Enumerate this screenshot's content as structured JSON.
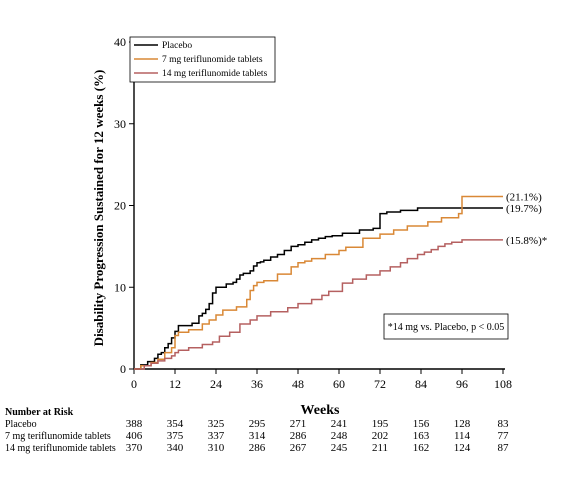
{
  "chart_data": {
    "type": "line",
    "step": true,
    "xlabel": "Weeks",
    "ylabel": "Disability Progression Sustained for 12 weeks (%)",
    "xlim": [
      0,
      108
    ],
    "ylim": [
      0,
      40
    ],
    "xticks": [
      0,
      12,
      24,
      36,
      48,
      60,
      72,
      84,
      96,
      108
    ],
    "yticks": [
      0,
      10,
      20,
      30,
      40
    ],
    "grid": false,
    "legend_position": "top-left",
    "series": [
      {
        "name": "Placebo",
        "color": "#000000",
        "end_label": "(19.7%)",
        "x": [
          0,
          2,
          4,
          6,
          7,
          8,
          9,
          10,
          11,
          12,
          13,
          17,
          19,
          20,
          21,
          22,
          23,
          24,
          27,
          29,
          30,
          31,
          32,
          34,
          35,
          36,
          37,
          38,
          40,
          42,
          44,
          46,
          48,
          50,
          52,
          54,
          56,
          58,
          61,
          66,
          70,
          72,
          74,
          78,
          83,
          96,
          108
        ],
        "y": [
          0,
          0.5,
          0.9,
          1.3,
          1.8,
          2.0,
          2.6,
          3.1,
          3.8,
          4.6,
          5.3,
          5.6,
          6.5,
          6.8,
          7.3,
          8.0,
          9.3,
          10.0,
          10.4,
          10.6,
          11.0,
          11.5,
          11.7,
          12.0,
          12.6,
          13.0,
          13.1,
          13.3,
          13.7,
          14.0,
          14.5,
          15.0,
          15.2,
          15.5,
          15.8,
          16.0,
          16.2,
          16.3,
          16.6,
          17.0,
          17.2,
          19.0,
          19.2,
          19.4,
          19.7,
          19.7,
          19.7
        ]
      },
      {
        "name": "7 mg teriflunomide tablets",
        "color": "#d98836",
        "end_label": "(21.1%)",
        "x": [
          0,
          2,
          5,
          7,
          9,
          11,
          12,
          13,
          16,
          20,
          22,
          24,
          26,
          30,
          33,
          34,
          35,
          36,
          38,
          42,
          46,
          48,
          50,
          52,
          56,
          60,
          62,
          67,
          72,
          76,
          80,
          86,
          90,
          95,
          96,
          108
        ],
        "y": [
          0,
          0.4,
          0.8,
          1.2,
          2.0,
          2.6,
          4.1,
          4.5,
          4.8,
          5.5,
          6.0,
          6.6,
          7.2,
          7.6,
          8.5,
          9.6,
          10.2,
          10.6,
          10.8,
          11.6,
          12.5,
          13.0,
          13.2,
          13.5,
          14.0,
          14.5,
          14.9,
          16.0,
          16.5,
          17.0,
          17.5,
          18.0,
          18.5,
          19.0,
          21.1,
          21.1
        ]
      },
      {
        "name": "14 mg teriflunomide tablets",
        "color": "#b56060",
        "end_label": "(15.8%)*",
        "x": [
          0,
          3,
          5,
          7,
          9,
          11,
          12,
          13,
          16,
          20,
          23,
          25,
          28,
          31,
          34,
          36,
          40,
          45,
          48,
          52,
          55,
          57,
          61,
          64,
          68,
          72,
          75,
          78,
          80,
          83,
          85,
          87,
          89,
          91,
          93,
          96,
          108
        ],
        "y": [
          0,
          0.4,
          0.7,
          1.0,
          1.3,
          1.6,
          2.0,
          2.3,
          2.6,
          3.0,
          3.3,
          4.0,
          4.5,
          5.5,
          6.0,
          6.5,
          7.0,
          7.5,
          8.0,
          8.5,
          9.0,
          9.5,
          10.5,
          11.0,
          11.5,
          12.0,
          12.5,
          13.0,
          13.5,
          14.0,
          14.3,
          14.6,
          15.0,
          15.3,
          15.5,
          15.8,
          15.8
        ]
      }
    ],
    "annotation": "*14 mg vs. Placebo, p < 0.05"
  },
  "risk_table": {
    "title": "Number at Risk",
    "columns": [
      0,
      12,
      24,
      36,
      48,
      60,
      72,
      84,
      96,
      108
    ],
    "rows": [
      {
        "label": "Placebo",
        "values": [
          "388",
          "354",
          "325",
          "295",
          "271",
          "241",
          "195",
          "156",
          "128",
          "83"
        ]
      },
      {
        "label": "7 mg teriflunomide tablets",
        "values": [
          "406",
          "375",
          "337",
          "314",
          "286",
          "248",
          "202",
          "163",
          "114",
          "77"
        ]
      },
      {
        "label": "14 mg teriflunomide tablets",
        "values": [
          "370",
          "340",
          "310",
          "286",
          "267",
          "245",
          "211",
          "162",
          "124",
          "87"
        ]
      }
    ]
  }
}
